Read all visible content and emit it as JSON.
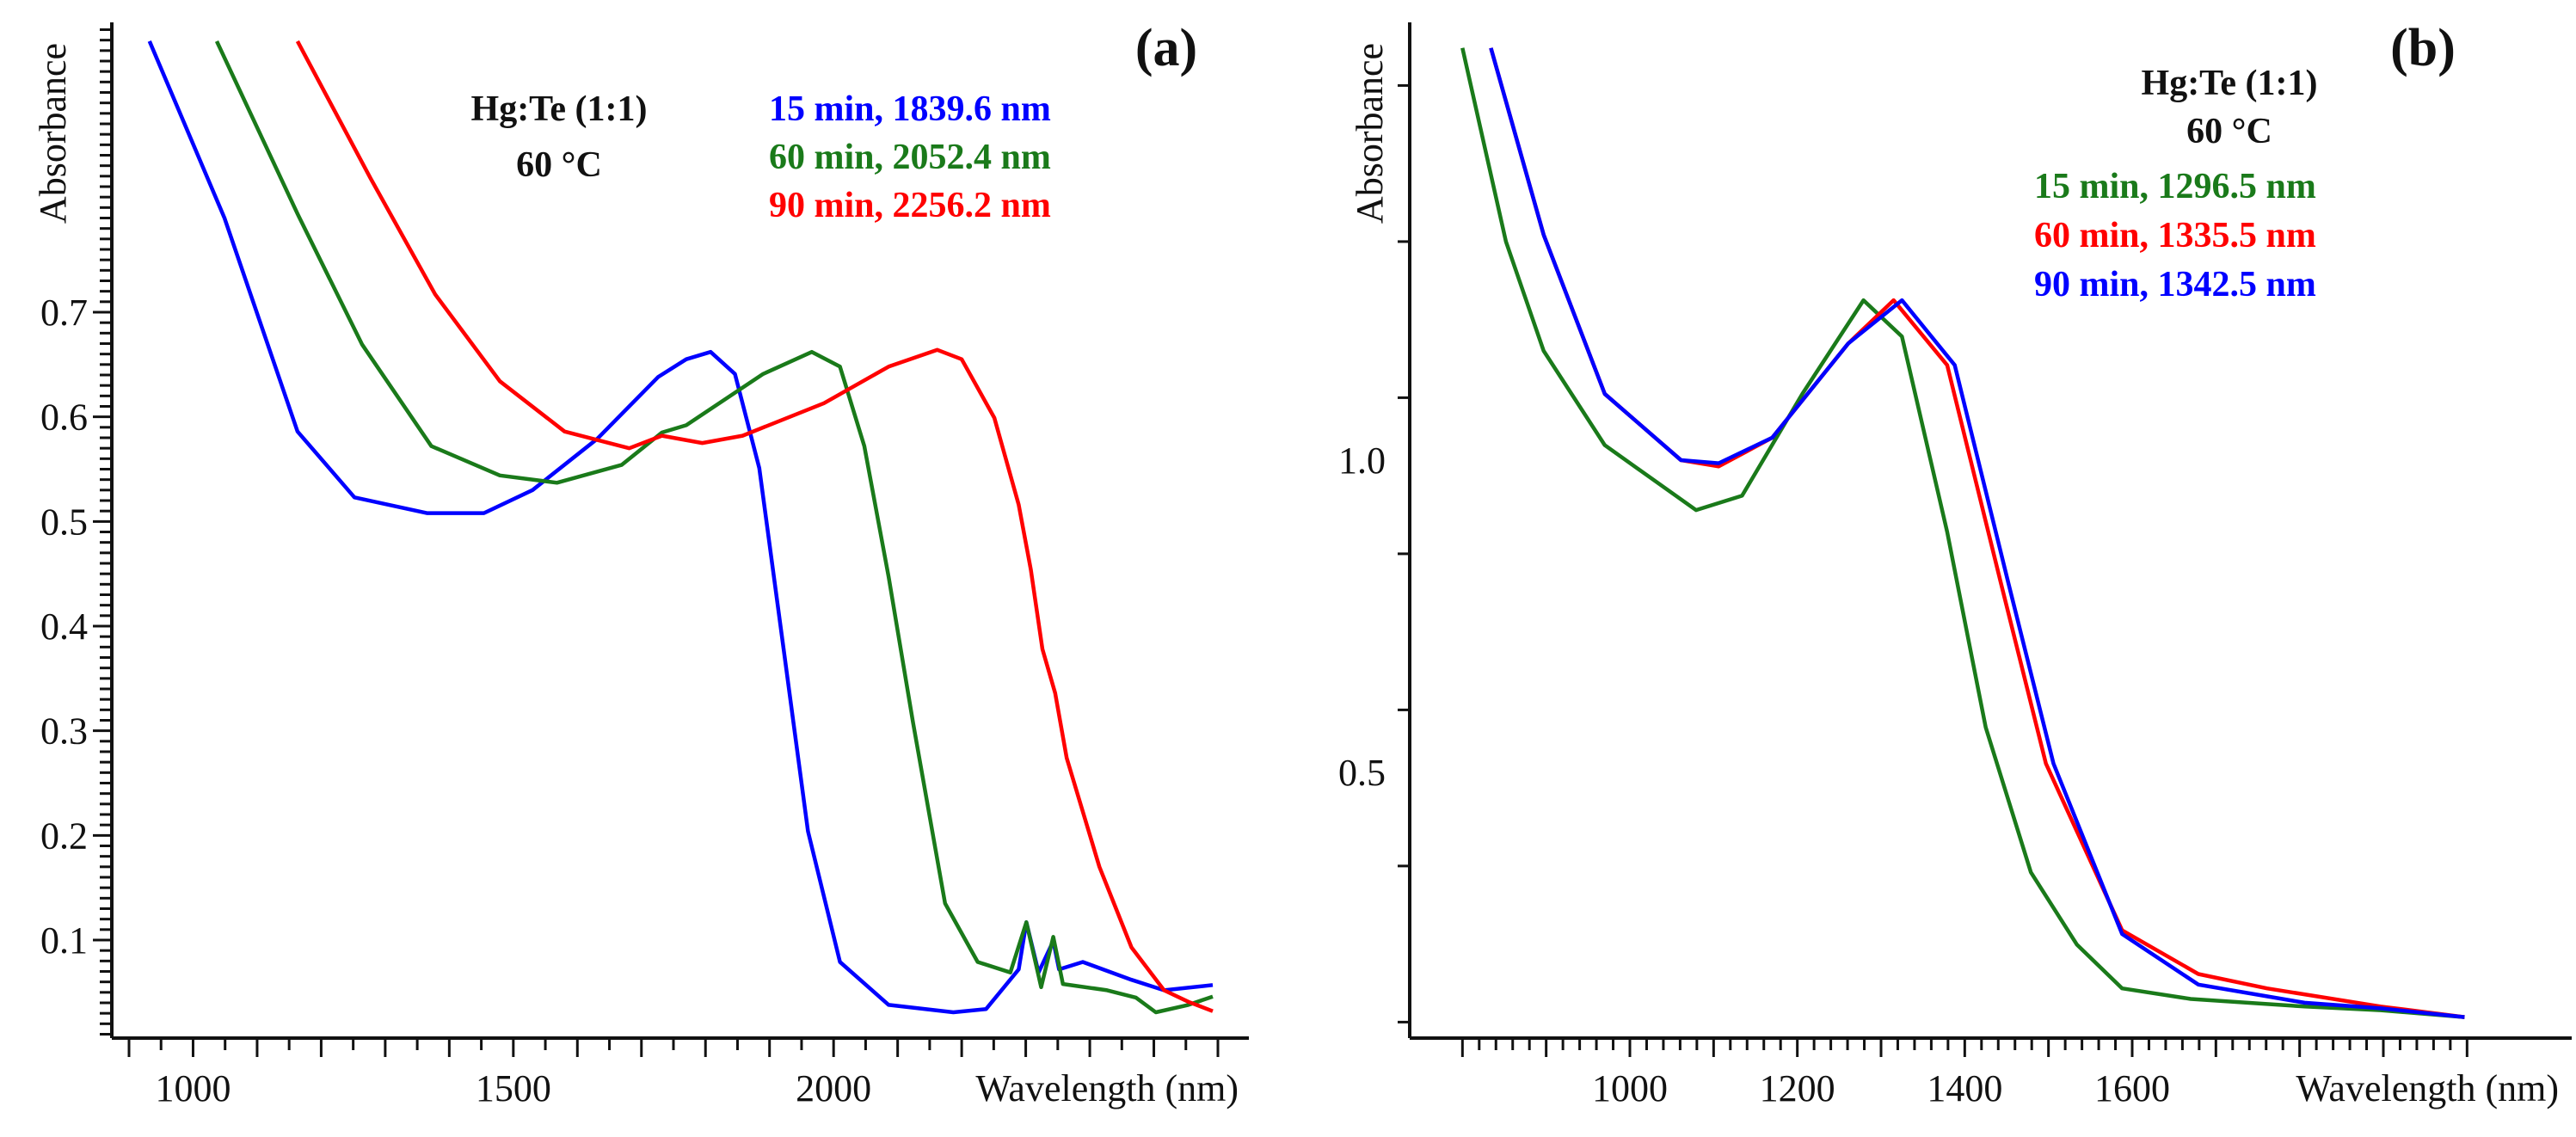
{
  "chart_data": [
    {
      "type": "line",
      "panel_label": "(a)",
      "xlabel": "Wavelength (nm)",
      "ylabel": "Absorbance",
      "xlim": [
        900,
        2600
      ],
      "ylim": [
        0.008,
        0.975
      ],
      "x_ticks": [
        1000,
        1500,
        2000
      ],
      "y_ticks": [
        0.1,
        0.2,
        0.3,
        0.4,
        0.5,
        0.6,
        0.7
      ],
      "annotation": [
        "Hg:Te (1:1)",
        "60 °C"
      ],
      "series": [
        {
          "name": "15 min, 1839.6 nm",
          "color": "#0000ff",
          "x": [
            932,
            1049,
            1163,
            1252,
            1365,
            1454,
            1530,
            1631,
            1726,
            1770,
            1808,
            1846,
            1884,
            1922,
            1960,
            2010,
            2086,
            2187,
            2238,
            2289,
            2301,
            2320,
            2343,
            2352,
            2389,
            2465,
            2516,
            2592
          ],
          "y": [
            0.959,
            0.79,
            0.586,
            0.523,
            0.508,
            0.508,
            0.53,
            0.579,
            0.638,
            0.655,
            0.662,
            0.641,
            0.551,
            0.378,
            0.204,
            0.079,
            0.038,
            0.031,
            0.034,
            0.072,
            0.117,
            0.069,
            0.099,
            0.072,
            0.079,
            0.062,
            0.052,
            0.057
          ]
        },
        {
          "name": "60 min, 2052.4 nm",
          "color": "#1a7a1a",
          "x": [
            1037,
            1163,
            1264,
            1372,
            1479,
            1568,
            1669,
            1732,
            1770,
            1890,
            1966,
            2010,
            2048,
            2086,
            2124,
            2174,
            2225,
            2276,
            2301,
            2324,
            2343,
            2358,
            2427,
            2472,
            2503,
            2554,
            2592
          ],
          "y": [
            0.959,
            0.794,
            0.669,
            0.572,
            0.544,
            0.537,
            0.554,
            0.585,
            0.592,
            0.641,
            0.662,
            0.648,
            0.572,
            0.447,
            0.308,
            0.135,
            0.079,
            0.069,
            0.117,
            0.055,
            0.103,
            0.058,
            0.052,
            0.045,
            0.031,
            0.038,
            0.046
          ]
        },
        {
          "name": "90 min, 2256.2 nm",
          "color": "#ff0000",
          "x": [
            1163,
            1277,
            1378,
            1479,
            1580,
            1681,
            1732,
            1795,
            1858,
            1985,
            2086,
            2162,
            2200,
            2251,
            2289,
            2308,
            2326,
            2346,
            2364,
            2415,
            2465,
            2516,
            2554,
            2592
          ],
          "y": [
            0.959,
            0.828,
            0.717,
            0.634,
            0.586,
            0.57,
            0.582,
            0.575,
            0.582,
            0.613,
            0.648,
            0.664,
            0.655,
            0.599,
            0.516,
            0.454,
            0.378,
            0.336,
            0.274,
            0.17,
            0.093,
            0.052,
            0.041,
            0.032
          ]
        }
      ]
    },
    {
      "type": "line",
      "panel_label": "(b)",
      "xlabel": "Wavelength (nm)",
      "ylabel": "Absorbance",
      "xlim": [
        800,
        2000
      ],
      "ylim": [
        0.074,
        1.72
      ],
      "x_ticks": [
        1000,
        1200,
        1400,
        1600
      ],
      "y_ticks": [
        0.5,
        1.0
      ],
      "annotation": [
        "Hg:Te (1:1)",
        "60 °C"
      ],
      "series": [
        {
          "name": "15 min, 1296.5 nm",
          "color": "#1a7a1a",
          "x": [
            800,
            852,
            897,
            970,
            1079,
            1134,
            1206,
            1279,
            1325,
            1379,
            1425,
            1479,
            1534,
            1588,
            1670,
            1806,
            1897,
            1997
          ],
          "y": [
            1.66,
            1.35,
            1.175,
            1.024,
            0.92,
            0.943,
            1.106,
            1.256,
            1.198,
            0.885,
            0.572,
            0.34,
            0.224,
            0.154,
            0.137,
            0.125,
            0.119,
            0.108
          ]
        },
        {
          "name": "60 min, 1335.5 nm",
          "color": "#ff0000",
          "x": [
            834,
            897,
            970,
            1061,
            1106,
            1170,
            1261,
            1315,
            1379,
            1443,
            1497,
            1588,
            1679,
            1761,
            1897,
            1997
          ],
          "y": [
            1.66,
            1.361,
            1.106,
            1.0,
            0.99,
            1.036,
            1.187,
            1.256,
            1.152,
            0.804,
            0.514,
            0.247,
            0.177,
            0.154,
            0.125,
            0.108
          ]
        },
        {
          "name": "90 min, 1342.5 nm",
          "color": "#0000ff",
          "x": [
            834,
            897,
            970,
            1061,
            1106,
            1170,
            1261,
            1325,
            1388,
            1452,
            1506,
            1588,
            1679,
            1806,
            1897,
            1997
          ],
          "y": [
            1.66,
            1.361,
            1.106,
            1.0,
            0.995,
            1.036,
            1.187,
            1.256,
            1.152,
            0.804,
            0.514,
            0.241,
            0.16,
            0.131,
            0.122,
            0.108
          ]
        }
      ]
    }
  ]
}
